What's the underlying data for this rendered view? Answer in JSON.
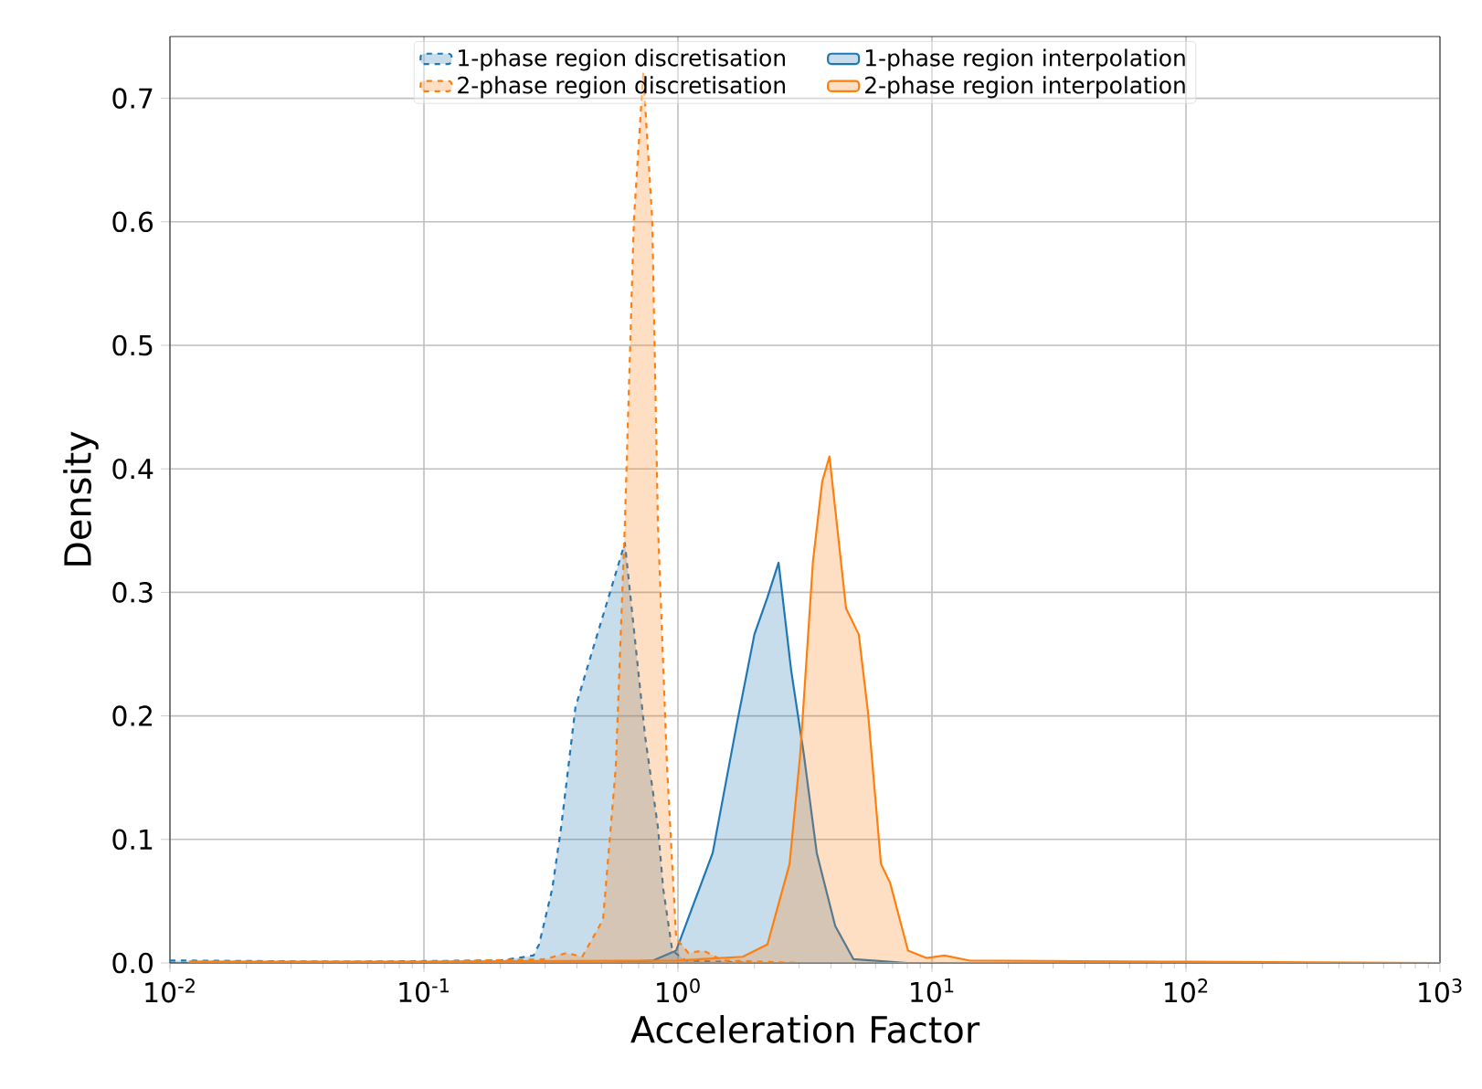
{
  "chart_data": {
    "type": "area",
    "xlabel": "Acceleration Factor",
    "ylabel": "Density",
    "log": "x",
    "grid": true,
    "legend": "top",
    "marker": "none",
    "xlim": [
      0.01,
      1000
    ],
    "ylim": [
      0,
      0.75
    ],
    "xticks": [
      {
        "value": 0.01,
        "label": "10$^{-2}$"
      },
      {
        "value": 0.1,
        "label": "10$^{-1}$"
      },
      {
        "value": 1,
        "label": "10$^{0}$"
      },
      {
        "value": 10,
        "label": "10$^{1}$"
      },
      {
        "value": 100,
        "label": "10$^{2}$"
      },
      {
        "value": 1000,
        "label": "10$^{3}$"
      }
    ],
    "yticks": [
      {
        "value": 0,
        "label": "0.0"
      },
      0.1,
      0.2,
      0.3,
      0.4,
      0.5,
      0.6,
      0.7
    ],
    "series": [
      {
        "name": "1-phase region discretisation",
        "color": "#1f77b4",
        "line_style": "dashed",
        "x": [
          0.01,
          0.05,
          0.2,
          0.27,
          0.284,
          0.32,
          0.347,
          0.395,
          0.467,
          0.533,
          0.618,
          0.743,
          0.834,
          0.875,
          0.95,
          1.07,
          2,
          10
        ],
        "values": [
          0.002,
          0.001,
          0.002,
          0.006,
          0.015,
          0.06,
          0.11,
          0.207,
          0.257,
          0.296,
          0.34,
          0.183,
          0.11,
          0.06,
          0.01,
          0.002,
          0.0,
          0.0
        ]
      },
      {
        "name": "1-phase region interpolation",
        "color": "#1f77b4",
        "line_style": "solid",
        "x": [
          0.5,
          0.8,
          0.984,
          1.37,
          1.7,
          2.0,
          2.25,
          2.49,
          2.79,
          3.13,
          3.52,
          4.16,
          4.91,
          8
        ],
        "values": [
          0.0,
          0.002,
          0.01,
          0.089,
          0.192,
          0.266,
          0.296,
          0.324,
          0.237,
          0.169,
          0.089,
          0.03,
          0.003,
          0.0
        ]
      },
      {
        "name": "2-phase region discretisation",
        "color": "#ff7f0e",
        "line_style": "dashed",
        "x": [
          0.012,
          0.1,
          0.3,
          0.364,
          0.42,
          0.507,
          0.569,
          0.618,
          0.671,
          0.73,
          0.792,
          0.834,
          0.906,
          0.984,
          1.1,
          1.26,
          1.5,
          3
        ],
        "values": [
          0.001,
          0.001,
          0.003,
          0.008,
          0.005,
          0.035,
          0.158,
          0.355,
          0.602,
          0.72,
          0.602,
          0.355,
          0.158,
          0.02,
          0.008,
          0.01,
          0.002,
          0.0
        ]
      },
      {
        "name": "2-phase region interpolation",
        "color": "#ff7f0e",
        "line_style": "solid",
        "x": [
          0.012,
          0.1,
          1,
          1.8,
          2.25,
          2.75,
          3.03,
          3.4,
          3.7,
          3.95,
          4.59,
          5.15,
          5.6,
          6.3,
          6.84,
          8.05,
          9.5,
          11.2,
          14,
          100,
          1000
        ],
        "values": [
          0.001,
          0.001,
          0.002,
          0.005,
          0.015,
          0.08,
          0.169,
          0.325,
          0.39,
          0.41,
          0.287,
          0.266,
          0.203,
          0.08,
          0.065,
          0.01,
          0.004,
          0.006,
          0.002,
          0.001,
          0.0
        ]
      }
    ]
  }
}
